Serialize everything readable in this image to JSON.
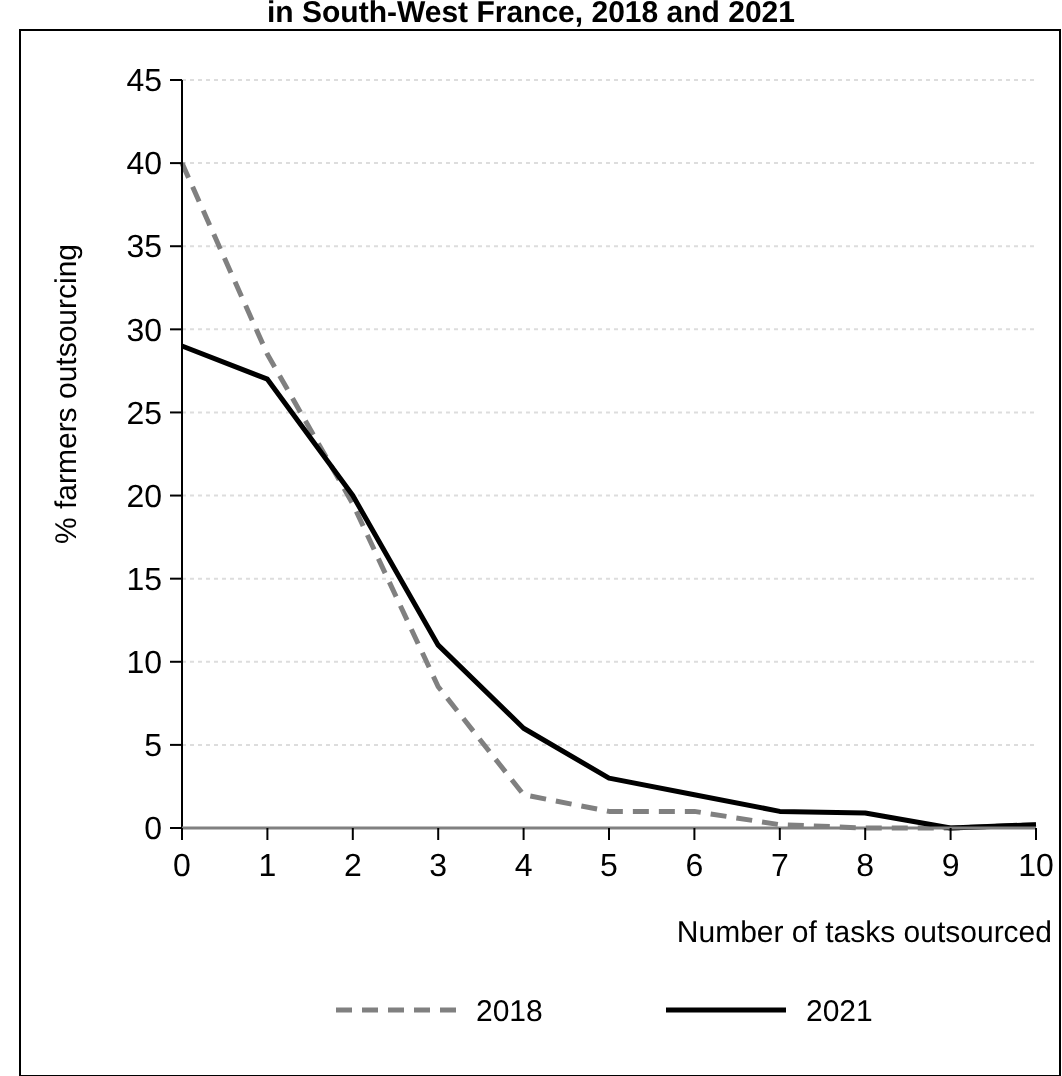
{
  "chart_data": {
    "type": "line",
    "title": "in South-West France, 2018 and 2021",
    "xlabel": "Number of tasks outsourced",
    "ylabel": "% farmers outsourcing",
    "x": [
      0,
      1,
      2,
      3,
      4,
      5,
      6,
      7,
      8,
      9,
      10
    ],
    "series": [
      {
        "name": "2018",
        "color": "#808080",
        "line_style": "dashed",
        "values": [
          40,
          28.5,
          19.5,
          8.5,
          2,
          1,
          1,
          0.2,
          0,
          0,
          0.2
        ]
      },
      {
        "name": "2021",
        "color": "#000000",
        "line_style": "solid",
        "values": [
          29,
          27,
          20,
          11,
          6,
          3,
          2,
          1,
          0.9,
          0,
          0.2
        ]
      }
    ],
    "xlim": [
      0,
      10
    ],
    "xticks": [
      0,
      1,
      2,
      3,
      4,
      5,
      6,
      7,
      8,
      9,
      10
    ],
    "ylim": [
      0,
      45
    ],
    "yticks": [
      0,
      5,
      10,
      15,
      20,
      25,
      30,
      35,
      40,
      45
    ],
    "grid": "y",
    "legend": "bottom",
    "marker": "none"
  }
}
